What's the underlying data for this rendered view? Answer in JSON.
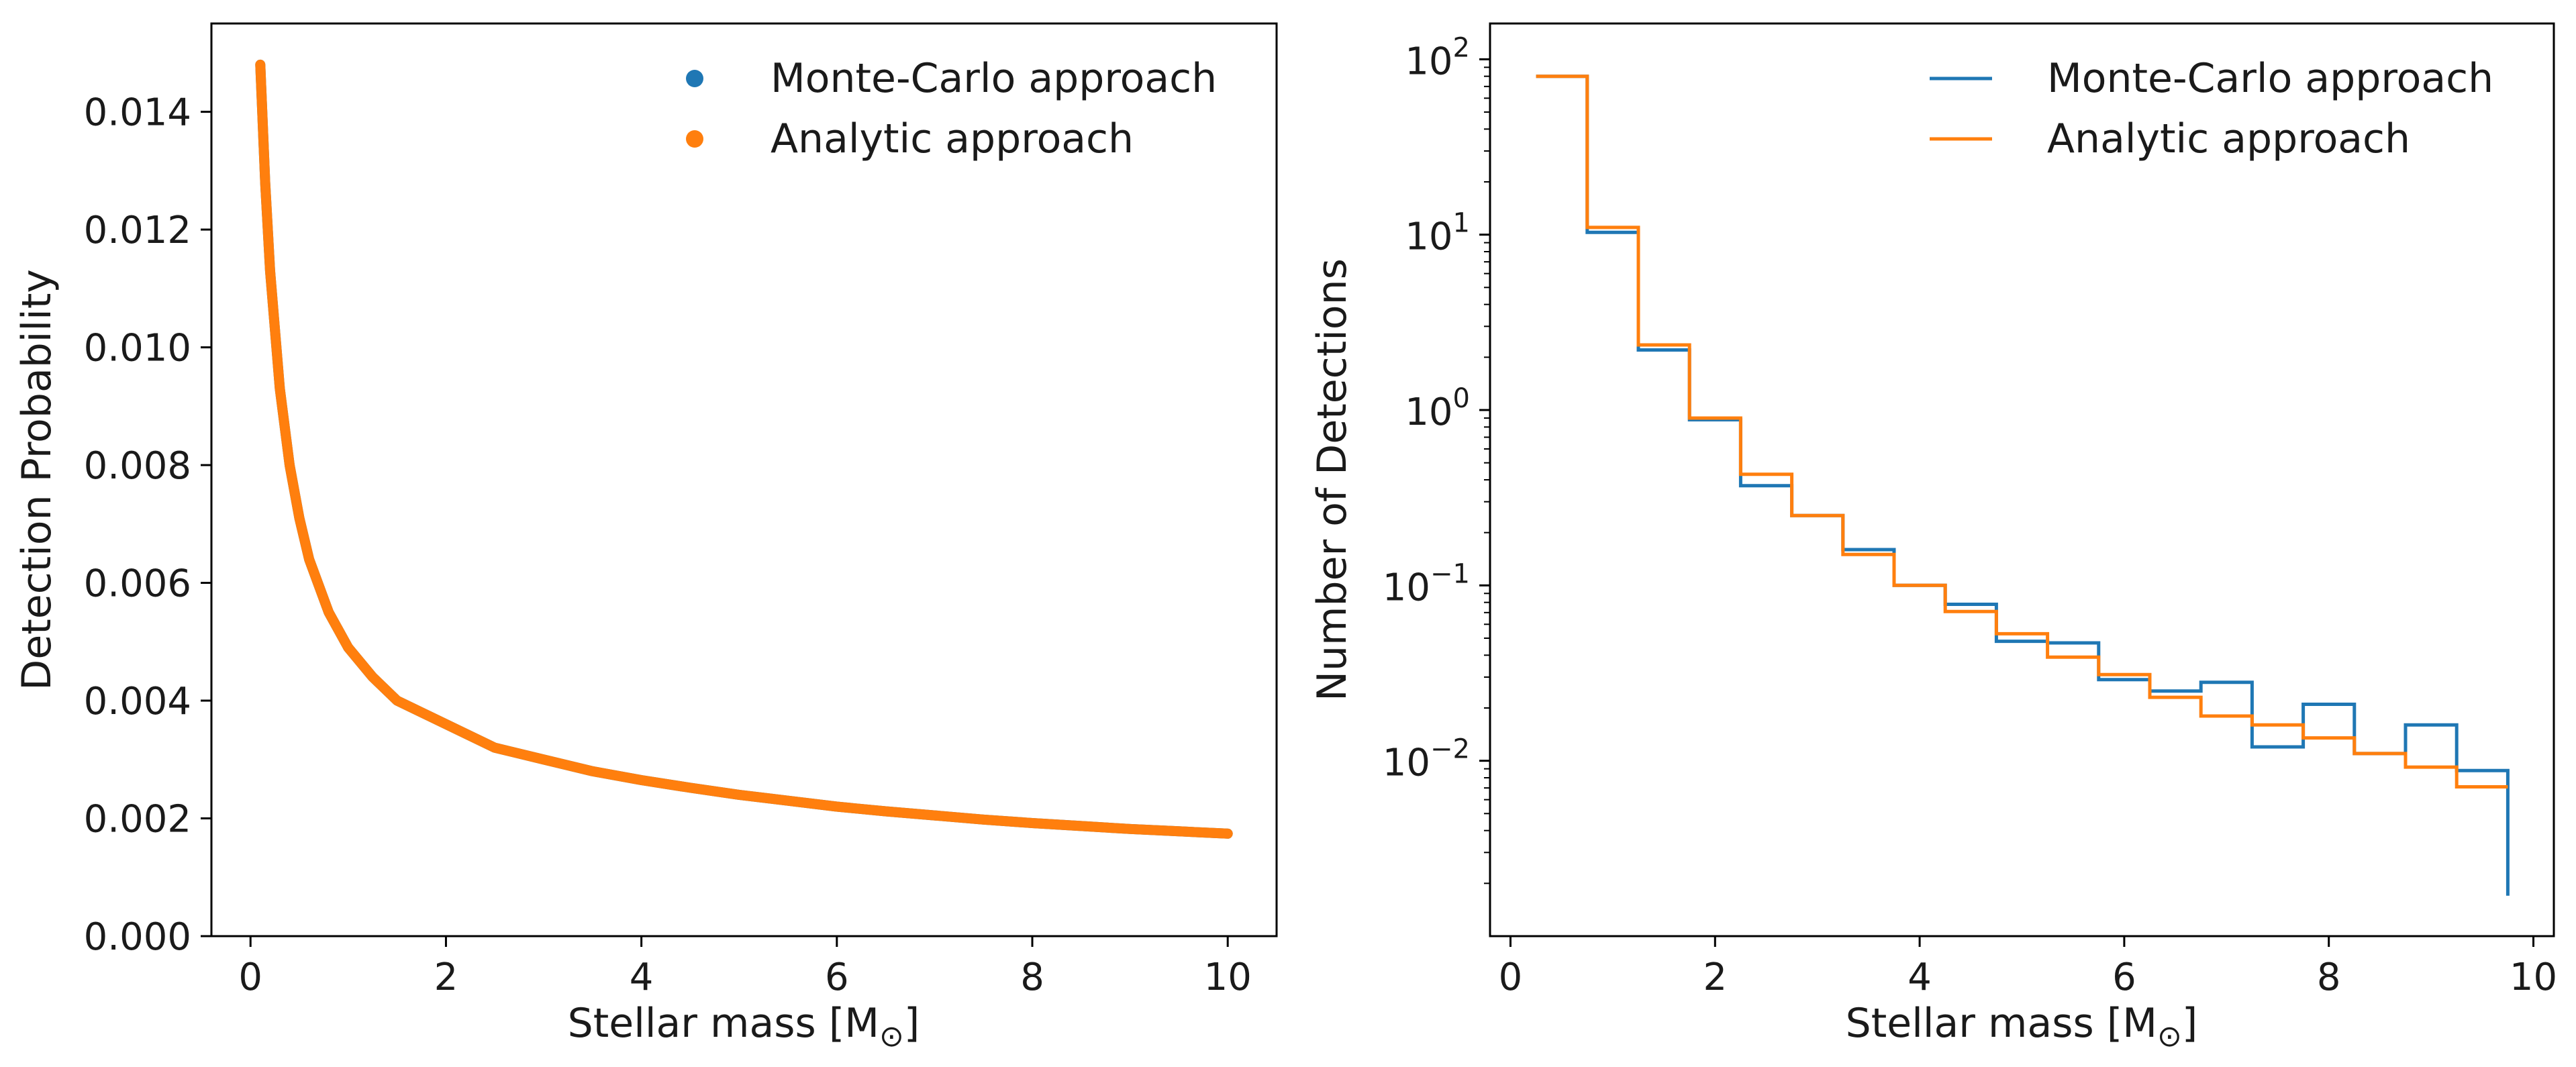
{
  "chart_data": [
    {
      "type": "scatter",
      "xlabel": "Stellar mass [M",
      "xlabel_sub": "⊙",
      "xlabel_close": "]",
      "ylabel": "Detection Probability",
      "xlim": [
        -0.4,
        10.5
      ],
      "ylim": [
        0,
        0.0155
      ],
      "x_ticks": [
        0,
        2,
        4,
        6,
        8,
        10
      ],
      "y_ticks": [
        0.0,
        0.002,
        0.004,
        0.006,
        0.008,
        0.01,
        0.012,
        0.014
      ],
      "x_tick_labels": [
        "0",
        "2",
        "4",
        "6",
        "8",
        "10"
      ],
      "y_tick_labels": [
        "0.000",
        "0.002",
        "0.004",
        "0.006",
        "0.008",
        "0.010",
        "0.012",
        "0.014"
      ],
      "legend_position": "top-right",
      "series": [
        {
          "name": "Monte-Carlo approach",
          "color": "#1f77b4",
          "x": [
            0.1,
            0.15,
            0.2,
            0.3,
            0.4,
            0.5,
            0.6,
            0.8,
            1.0,
            1.25,
            1.5,
            2.0,
            2.5,
            3.0,
            3.5,
            4.0,
            4.5,
            5.0,
            5.5,
            6.0,
            6.5,
            7.0,
            7.5,
            8.0,
            8.5,
            9.0,
            9.5,
            10.0
          ],
          "y": [
            0.0148,
            0.0128,
            0.0113,
            0.0093,
            0.008,
            0.0071,
            0.0064,
            0.0055,
            0.0049,
            0.0044,
            0.004,
            0.0036,
            0.0032,
            0.003,
            0.0028,
            0.00265,
            0.00252,
            0.0024,
            0.0023,
            0.0022,
            0.00212,
            0.00205,
            0.00198,
            0.00192,
            0.00187,
            0.00182,
            0.00178,
            0.00174
          ]
        },
        {
          "name": "Analytic approach",
          "color": "#ff7f0e",
          "x": [
            0.1,
            0.15,
            0.2,
            0.3,
            0.4,
            0.5,
            0.6,
            0.8,
            1.0,
            1.25,
            1.5,
            2.0,
            2.5,
            3.0,
            3.5,
            4.0,
            4.5,
            5.0,
            5.5,
            6.0,
            6.5,
            7.0,
            7.5,
            8.0,
            8.5,
            9.0,
            9.5,
            10.0
          ],
          "y": [
            0.0148,
            0.0128,
            0.0113,
            0.0093,
            0.008,
            0.0071,
            0.0064,
            0.0055,
            0.0049,
            0.0044,
            0.004,
            0.0036,
            0.0032,
            0.003,
            0.0028,
            0.00265,
            0.00252,
            0.0024,
            0.0023,
            0.0022,
            0.00212,
            0.00205,
            0.00198,
            0.00192,
            0.00187,
            0.00182,
            0.00178,
            0.00174
          ]
        }
      ]
    },
    {
      "type": "line",
      "step": true,
      "yscale": "log",
      "xlabel": "Stellar mass [M",
      "xlabel_sub": "⊙",
      "xlabel_close": "]",
      "ylabel": "Number of Detections",
      "xlim": [
        -0.2,
        10.2
      ],
      "ylim": [
        0.001,
        160
      ],
      "x_ticks": [
        0,
        2,
        4,
        6,
        8,
        10
      ],
      "x_tick_labels": [
        "0",
        "2",
        "4",
        "6",
        "8",
        "10"
      ],
      "y_ticks": [
        0.01,
        0.1,
        1,
        10,
        100
      ],
      "y_tick_bases": [
        "10",
        "10",
        "10",
        "10",
        "10"
      ],
      "y_tick_exps": [
        "−2",
        "−1",
        "0",
        "1",
        "2"
      ],
      "legend_position": "top-right",
      "bin_edges": [
        0.25,
        0.75,
        1.25,
        1.75,
        2.25,
        2.75,
        3.25,
        3.75,
        4.25,
        4.75,
        5.25,
        5.75,
        6.25,
        6.75,
        7.25,
        7.75,
        8.25,
        8.75,
        9.25,
        9.75
      ],
      "series": [
        {
          "name": "Monte-Carlo approach",
          "color": "#1f77b4",
          "values": [
            80,
            10.3,
            2.2,
            0.88,
            0.37,
            0.25,
            0.16,
            0.1,
            0.078,
            0.048,
            0.047,
            0.029,
            0.025,
            0.028,
            0.012,
            0.021,
            0.011,
            0.016,
            0.0088
          ],
          "end_value": 0.0017
        },
        {
          "name": "Analytic approach",
          "color": "#ff7f0e",
          "values": [
            80,
            11.0,
            2.35,
            0.9,
            0.43,
            0.25,
            0.15,
            0.1,
            0.071,
            0.053,
            0.039,
            0.031,
            0.023,
            0.018,
            0.016,
            0.0135,
            0.011,
            0.0092,
            0.0071
          ]
        }
      ]
    }
  ]
}
